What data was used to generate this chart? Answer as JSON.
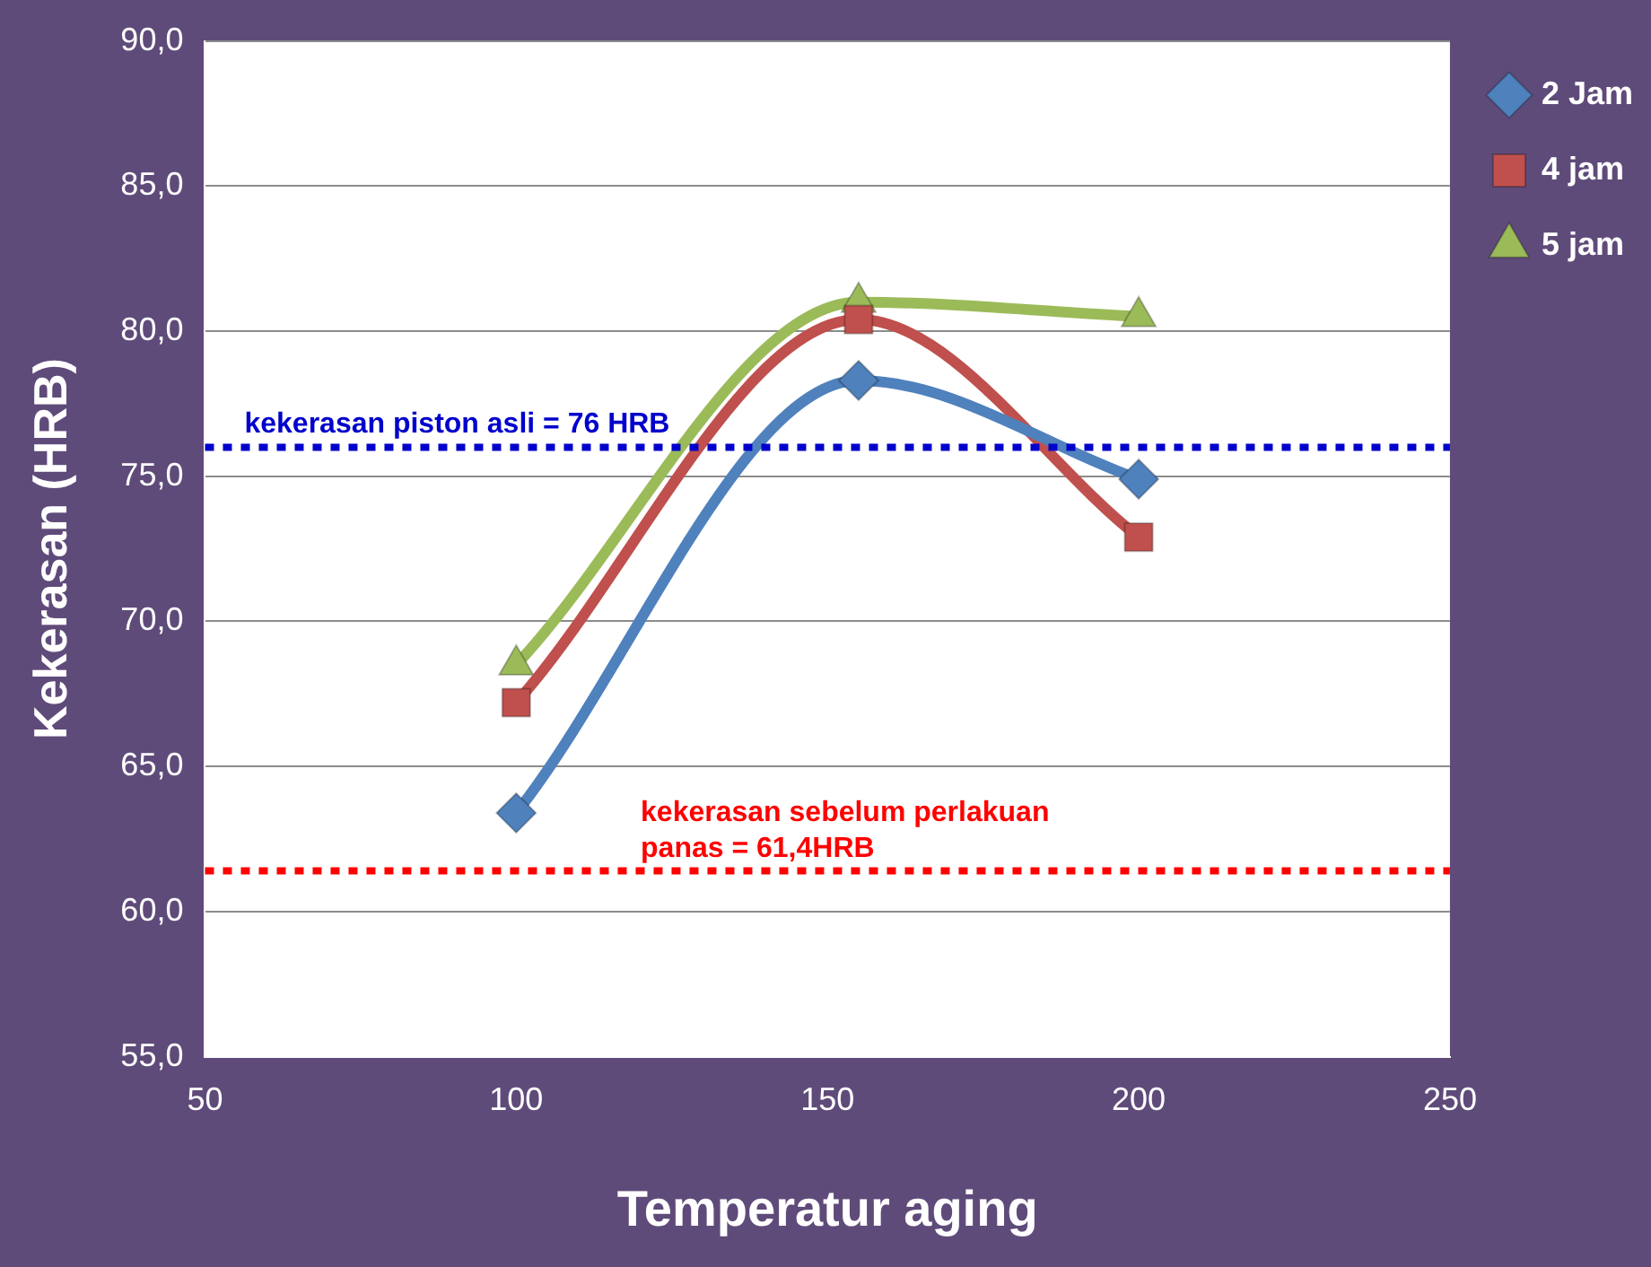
{
  "chart_data": {
    "type": "line",
    "xlabel": "Temperatur aging",
    "ylabel": "Kekerasan (HRB)",
    "xlim": [
      50,
      250
    ],
    "xticks": [
      50,
      100,
      150,
      200,
      250
    ],
    "ylim": [
      55,
      90
    ],
    "yticks": [
      {
        "value": 55,
        "label": "55,0"
      },
      {
        "value": 60,
        "label": "60,0"
      },
      {
        "value": 65,
        "label": "65,0"
      },
      {
        "value": 70,
        "label": "70,0"
      },
      {
        "value": 75,
        "label": "75,0"
      },
      {
        "value": 80,
        "label": "80,0"
      },
      {
        "value": 85,
        "label": "85,0"
      },
      {
        "value": 90,
        "label": "90,0"
      }
    ],
    "grid": "y",
    "legend": "right",
    "series": [
      {
        "name": "2 Jam",
        "color": "#4f81bd",
        "marker": "diamond",
        "x": [
          100,
          155,
          200
        ],
        "values": [
          63.4,
          78.3,
          74.9
        ]
      },
      {
        "name": "4 jam",
        "color": "#c0504d",
        "marker": "square",
        "x": [
          100,
          155,
          200
        ],
        "values": [
          67.2,
          80.4,
          72.9
        ]
      },
      {
        "name": "5 jam",
        "color": "#9bbb59",
        "marker": "triangle",
        "x": [
          100,
          155,
          200
        ],
        "values": [
          68.5,
          81.0,
          80.5
        ]
      }
    ],
    "ref_lines": [
      {
        "axis": "y",
        "value": 76,
        "label": "kekerasan piston asli = 76 HRB",
        "color": "#0000cc",
        "line_style": "dotted"
      },
      {
        "axis": "y",
        "value": 61.4,
        "label": "kekerasan sebelum perlakuan panas = 61,4HRB",
        "color": "#ff0000",
        "line_style": "dotted"
      }
    ]
  }
}
